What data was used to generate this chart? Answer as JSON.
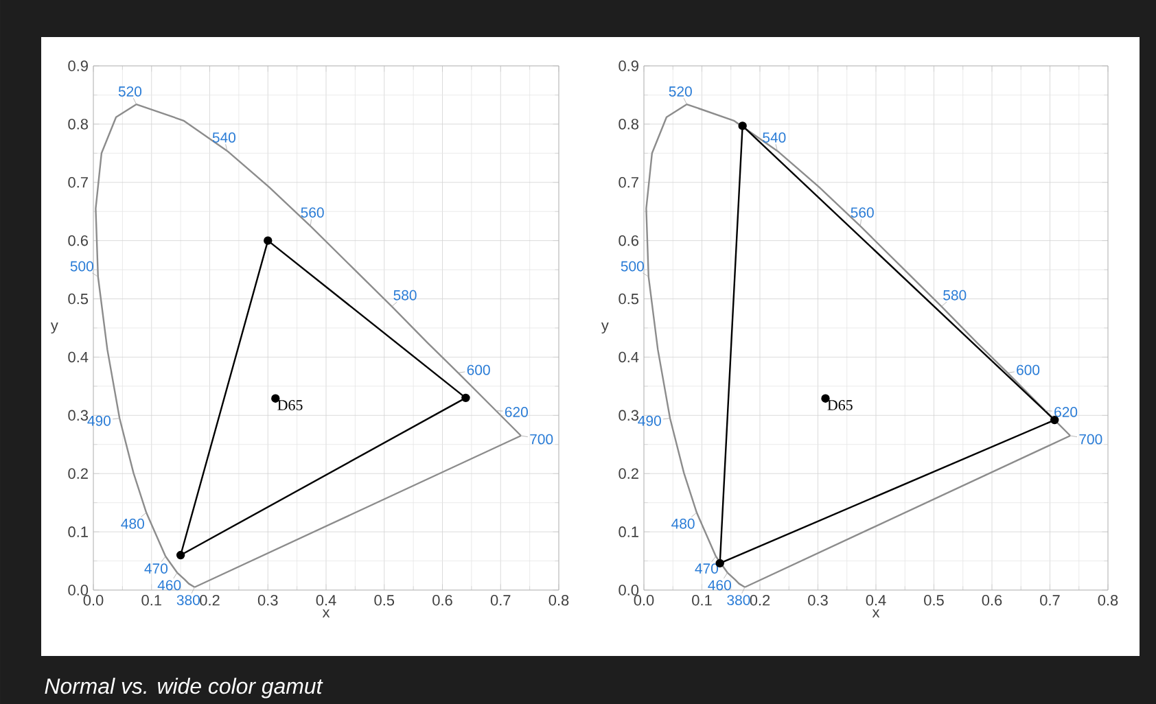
{
  "chart_data": [
    {
      "type": "line",
      "xlabel": "x",
      "ylabel": "y",
      "xlim": [
        0,
        0.8
      ],
      "ylim": [
        0,
        0.9
      ],
      "xticks": [
        {
          "value": 0,
          "label": "0.0"
        },
        0.1,
        0.2,
        0.3,
        0.4,
        0.5,
        0.6,
        0.7,
        0.8
      ],
      "yticks": [
        {
          "value": 0,
          "label": "0.0"
        },
        0.1,
        0.2,
        0.3,
        0.4,
        0.5,
        0.6,
        0.7,
        0.8,
        0.9
      ],
      "grid": true,
      "series": [
        {
          "color": "#8c8c8c",
          "marker": "none",
          "x": [
            0.174,
            0.164,
            0.157,
            0.144,
            0.124,
            0.091,
            0.069,
            0.045,
            0.024,
            0.008,
            0.004,
            0.014,
            0.039,
            0.074,
            0.155,
            0.23,
            0.302,
            0.373,
            0.444,
            0.513,
            0.575,
            0.627,
            0.692,
            0.735
          ],
          "values": [
            0.005,
            0.011,
            0.018,
            0.03,
            0.058,
            0.133,
            0.201,
            0.295,
            0.413,
            0.538,
            0.655,
            0.75,
            0.812,
            0.834,
            0.806,
            0.754,
            0.692,
            0.625,
            0.555,
            0.487,
            0.424,
            0.373,
            0.308,
            0.265
          ]
        },
        {
          "color": "#8c8c8c",
          "marker": "none",
          "x": [
            0.735,
            0.174
          ],
          "values": [
            0.265,
            0.005
          ]
        },
        {
          "type": "scatter",
          "color": "#000000",
          "marker": "circle",
          "x": [
            0.64,
            0.3,
            0.15
          ],
          "values": [
            0.33,
            0.6,
            0.06
          ]
        },
        {
          "color": "#000000",
          "marker": "none",
          "x": [
            0.64,
            0.3,
            0.15
          ],
          "values": [
            0.33,
            0.6,
            0.06
          ]
        },
        {
          "color": "#000000",
          "marker": "none",
          "x": [
            0.15,
            0.64
          ],
          "values": [
            0.06,
            0.33
          ]
        },
        {
          "name": "D65",
          "type": "scatter",
          "color": "#000000",
          "marker": "circle",
          "x": [
            0.313
          ],
          "values": [
            0.329
          ]
        }
      ],
      "annotations": [
        {
          "text": "520",
          "x": 0.074,
          "y": 0.834
        },
        {
          "text": "540",
          "x": 0.23,
          "y": 0.754
        },
        {
          "text": "560",
          "x": 0.373,
          "y": 0.625
        },
        {
          "text": "580",
          "x": 0.513,
          "y": 0.487
        },
        {
          "text": "600",
          "x": 0.627,
          "y": 0.373
        },
        {
          "text": "620",
          "x": 0.692,
          "y": 0.308
        },
        {
          "text": "700",
          "x": 0.735,
          "y": 0.265
        },
        {
          "text": "500",
          "x": 0.008,
          "y": 0.538
        },
        {
          "text": "490",
          "x": 0.045,
          "y": 0.295
        },
        {
          "text": "480",
          "x": 0.091,
          "y": 0.133
        },
        {
          "text": "470",
          "x": 0.124,
          "y": 0.058
        },
        {
          "text": "460",
          "x": 0.144,
          "y": 0.03
        },
        {
          "text": "380",
          "x": 0.174,
          "y": 0.005
        },
        "Normal vs. wide color gamut"
      ]
    },
    {
      "type": "line",
      "xlabel": "x",
      "ylabel": "y",
      "xlim": [
        0,
        0.8
      ],
      "ylim": [
        0,
        0.9
      ],
      "xticks": [
        {
          "value": 0,
          "label": "0.0"
        },
        0.1,
        0.2,
        0.3,
        0.4,
        0.5,
        0.6,
        0.7,
        0.8
      ],
      "yticks": [
        {
          "value": 0,
          "label": "0.0"
        },
        0.1,
        0.2,
        0.3,
        0.4,
        0.5,
        0.6,
        0.7,
        0.8,
        0.9
      ],
      "grid": true,
      "series": [
        {
          "color": "#8c8c8c",
          "marker": "none",
          "x": [
            0.174,
            0.164,
            0.157,
            0.144,
            0.124,
            0.091,
            0.069,
            0.045,
            0.024,
            0.008,
            0.004,
            0.014,
            0.039,
            0.074,
            0.155,
            0.23,
            0.302,
            0.373,
            0.444,
            0.513,
            0.575,
            0.627,
            0.692,
            0.735
          ],
          "values": [
            0.005,
            0.011,
            0.018,
            0.03,
            0.058,
            0.133,
            0.201,
            0.295,
            0.413,
            0.538,
            0.655,
            0.75,
            0.812,
            0.834,
            0.806,
            0.754,
            0.692,
            0.625,
            0.555,
            0.487,
            0.424,
            0.373,
            0.308,
            0.265
          ]
        },
        {
          "color": "#8c8c8c",
          "marker": "none",
          "x": [
            0.735,
            0.174
          ],
          "values": [
            0.265,
            0.005
          ]
        },
        {
          "type": "scatter",
          "color": "#000000",
          "marker": "circle",
          "x": [
            0.708,
            0.17,
            0.131
          ],
          "values": [
            0.292,
            0.797,
            0.046
          ]
        },
        {
          "color": "#000000",
          "marker": "none",
          "x": [
            0.708,
            0.17,
            0.131
          ],
          "values": [
            0.292,
            0.797,
            0.046
          ]
        },
        {
          "color": "#000000",
          "marker": "none",
          "x": [
            0.131,
            0.708
          ],
          "values": [
            0.046,
            0.292
          ]
        },
        {
          "name": "D65",
          "type": "scatter",
          "color": "#000000",
          "marker": "circle",
          "x": [
            0.313
          ],
          "values": [
            0.329
          ]
        }
      ],
      "annotations": [
        {
          "text": "520",
          "x": 0.074,
          "y": 0.834
        },
        {
          "text": "540",
          "x": 0.23,
          "y": 0.754
        },
        {
          "text": "560",
          "x": 0.373,
          "y": 0.625
        },
        {
          "text": "580",
          "x": 0.513,
          "y": 0.487
        },
        {
          "text": "600",
          "x": 0.627,
          "y": 0.373
        },
        {
          "text": "620",
          "x": 0.692,
          "y": 0.308
        },
        {
          "text": "700",
          "x": 0.735,
          "y": 0.265
        },
        {
          "text": "500",
          "x": 0.008,
          "y": 0.538
        },
        {
          "text": "490",
          "x": 0.045,
          "y": 0.295
        },
        {
          "text": "480",
          "x": 0.091,
          "y": 0.133
        },
        {
          "text": "470",
          "x": 0.124,
          "y": 0.058
        },
        {
          "text": "460",
          "x": 0.144,
          "y": 0.03
        },
        {
          "text": "380",
          "x": 0.174,
          "y": 0.005
        }
      ]
    }
  ]
}
